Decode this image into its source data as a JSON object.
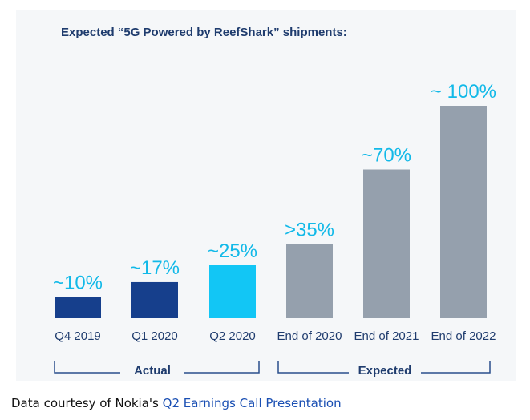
{
  "chart_data": {
    "type": "bar",
    "title": "Expected “5G Powered by ReefShark” shipments:",
    "categories": [
      "Q4 2019",
      "Q1 2020",
      "Q2 2020",
      "End of 2020",
      "End of 2021",
      "End of 2022"
    ],
    "values": [
      10,
      17,
      25,
      35,
      70,
      100
    ],
    "value_labels": [
      "~10%",
      "~17%",
      "~25%",
      ">35%",
      "~70%",
      "~ 100%"
    ],
    "ylim": [
      0,
      100
    ],
    "bar_colors": [
      "#163f8c",
      "#163f8c",
      "#12c6f5",
      "#95a0ad",
      "#95a0ad",
      "#95a0ad"
    ],
    "label_color": "#12b9e8",
    "groups": [
      {
        "label": "Actual",
        "categories": [
          "Q4 2019",
          "Q1 2020",
          "Q2 2020"
        ]
      },
      {
        "label": "Expected",
        "categories": [
          "End of 2020",
          "End of 2021",
          "End of 2022"
        ]
      }
    ]
  },
  "caption": {
    "prefix": "Data courtesy of Nokia's ",
    "link": "Q2 Earnings Call Presentation"
  }
}
